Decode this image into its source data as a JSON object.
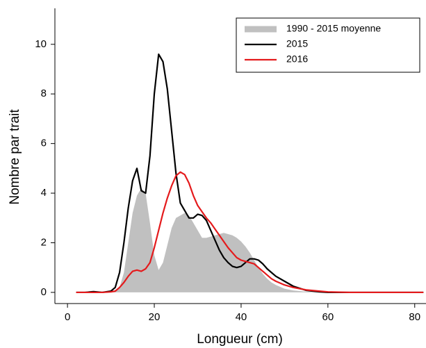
{
  "chart_data": {
    "type": "line",
    "x_label": "Longueur (cm)",
    "y_label": "Nombre par trait",
    "x": [
      2,
      4,
      6,
      8,
      10,
      11,
      12,
      13,
      14,
      15,
      16,
      17,
      18,
      19,
      20,
      21,
      22,
      23,
      24,
      25,
      26,
      27,
      28,
      29,
      30,
      31,
      32,
      33,
      34,
      35,
      36,
      37,
      38,
      39,
      40,
      41,
      42,
      43,
      44,
      45,
      46,
      47,
      48,
      50,
      52,
      55,
      58,
      60,
      65,
      70,
      75,
      82
    ],
    "series": [
      {
        "name": "1990 - 2015 moyenne",
        "color": "#c0c0c0",
        "style": "area",
        "values": [
          0,
          0,
          0,
          0,
          0.02,
          0.08,
          0.2,
          0.8,
          2.0,
          3.2,
          3.9,
          4.2,
          4.0,
          2.8,
          1.5,
          0.9,
          1.2,
          1.9,
          2.6,
          3.0,
          3.1,
          3.2,
          3.1,
          2.8,
          2.5,
          2.2,
          2.2,
          2.25,
          2.3,
          2.35,
          2.4,
          2.35,
          2.3,
          2.2,
          2.05,
          1.85,
          1.6,
          1.3,
          1.0,
          0.75,
          0.55,
          0.4,
          0.3,
          0.15,
          0.08,
          0.03,
          0.01,
          0,
          0,
          0,
          0,
          0
        ]
      },
      {
        "name": "2015",
        "color": "#000000",
        "style": "line",
        "values": [
          0,
          0,
          0.03,
          0,
          0.05,
          0.2,
          0.8,
          2.0,
          3.4,
          4.5,
          5.0,
          4.1,
          4.0,
          5.5,
          8.0,
          9.6,
          9.3,
          8.2,
          6.5,
          4.8,
          3.6,
          3.3,
          3.0,
          3.0,
          3.15,
          3.1,
          2.9,
          2.5,
          2.1,
          1.7,
          1.4,
          1.2,
          1.05,
          1.0,
          1.05,
          1.2,
          1.35,
          1.35,
          1.3,
          1.15,
          0.95,
          0.8,
          0.65,
          0.45,
          0.25,
          0.08,
          0.02,
          0,
          0,
          0,
          0,
          0
        ]
      },
      {
        "name": "2016",
        "color": "#e41a1c",
        "style": "line",
        "values": [
          0,
          0,
          0,
          0,
          0.02,
          0.05,
          0.2,
          0.4,
          0.65,
          0.85,
          0.9,
          0.85,
          0.95,
          1.2,
          1.8,
          2.5,
          3.2,
          3.8,
          4.3,
          4.7,
          4.85,
          4.75,
          4.4,
          3.9,
          3.5,
          3.25,
          3.0,
          2.8,
          2.55,
          2.3,
          2.05,
          1.8,
          1.6,
          1.4,
          1.3,
          1.25,
          1.2,
          1.15,
          1.0,
          0.85,
          0.7,
          0.55,
          0.45,
          0.3,
          0.2,
          0.1,
          0.05,
          0.02,
          0,
          0,
          0,
          0
        ]
      }
    ],
    "xlim": [
      -2.9,
      82.6
    ],
    "xticks": [
      0,
      20,
      40,
      60,
      80
    ],
    "ylim": [
      -0.45,
      11.45
    ],
    "yticks": [
      0,
      2,
      4,
      6,
      8,
      10
    ],
    "legend": "upper right",
    "grid": false
  }
}
